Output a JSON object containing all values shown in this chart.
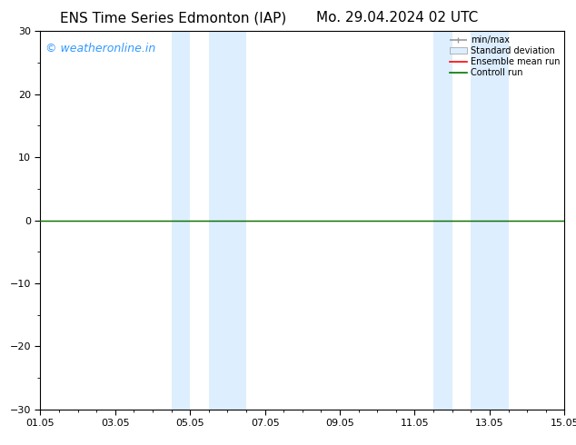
{
  "title_left": "ENS Time Series Edmonton (IAP)",
  "title_right": "Mo. 29.04.2024 02 UTC",
  "xlim": [
    0,
    14
  ],
  "ylim": [
    -30,
    30
  ],
  "yticks": [
    -30,
    -20,
    -10,
    0,
    10,
    20,
    30
  ],
  "xtick_labels": [
    "01.05",
    "03.05",
    "05.05",
    "07.05",
    "09.05",
    "11.05",
    "13.05",
    "15.05"
  ],
  "xtick_positions": [
    0,
    2,
    4,
    6,
    8,
    10,
    12,
    14
  ],
  "background_color": "#ffffff",
  "plot_bg_color": "#ffffff",
  "shaded_bands": [
    [
      3.5,
      4.0
    ],
    [
      4.5,
      5.5
    ],
    [
      10.5,
      11.0
    ],
    [
      11.5,
      12.5
    ]
  ],
  "shade_color": "#ddeeff",
  "watermark": "© weatheronline.in",
  "watermark_color": "#3399ff",
  "legend_labels": [
    "min/max",
    "Standard deviation",
    "Ensemble mean run",
    "Controll run"
  ],
  "legend_colors_line": [
    "#999999",
    "#bbccdd",
    "#ff0000",
    "#007700"
  ],
  "title_fontsize": 11,
  "tick_fontsize": 8,
  "watermark_fontsize": 9
}
